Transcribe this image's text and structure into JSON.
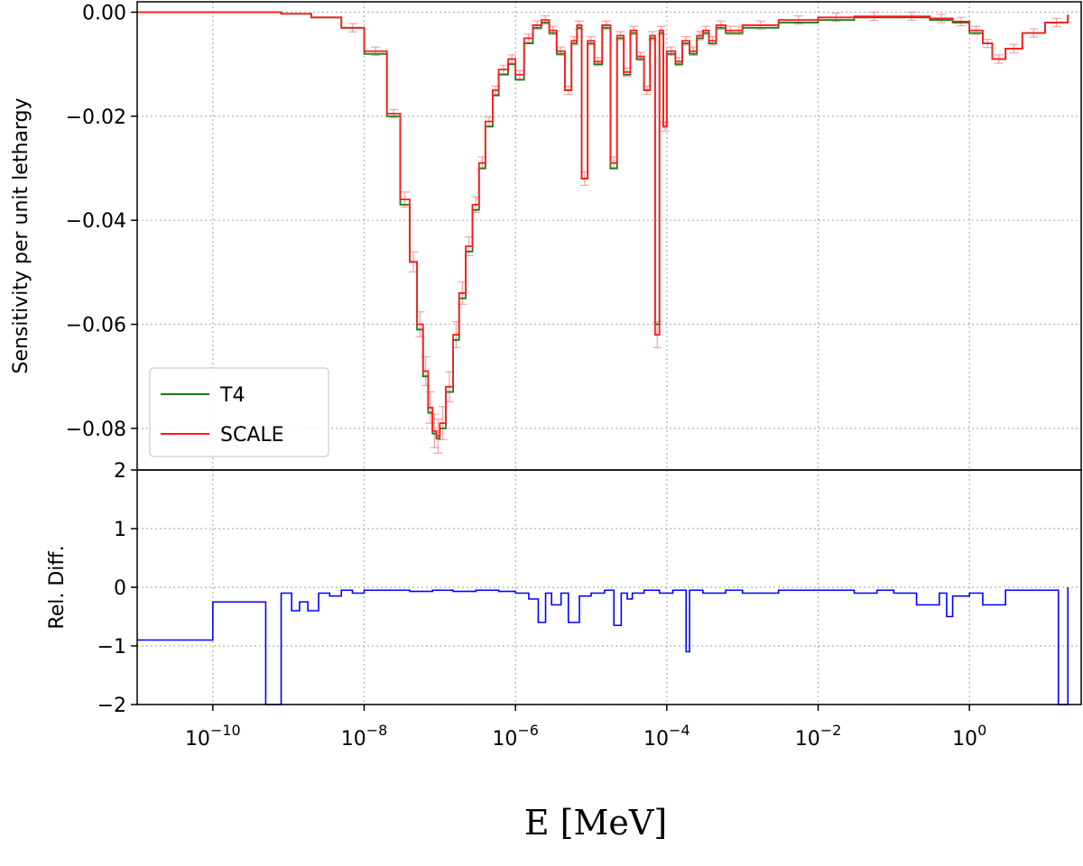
{
  "chart_data": [
    {
      "type": "line",
      "panel": "top",
      "ylabel": "Sensitivity per unit lethargy",
      "xscale": "log",
      "xlim": [
        1e-11,
        30
      ],
      "ylim": [
        -0.088,
        0.002
      ],
      "yticks": [
        0.0,
        -0.02,
        -0.04,
        -0.06,
        -0.08
      ],
      "ytick_labels": [
        "0.00",
        "−0.02",
        "−0.04",
        "−0.06",
        "−0.08"
      ],
      "grid": true,
      "legend": {
        "placement": "lower-left",
        "entries": [
          "T4",
          "SCALE"
        ]
      },
      "series": [
        {
          "name": "T4",
          "color": "#1a7a1a",
          "x": [
            1e-11,
            1e-10,
            3e-10,
            8e-10,
            2e-09,
            5e-09,
            1e-08,
            2e-08,
            3e-08,
            4e-08,
            5e-08,
            6e-08,
            7e-08,
            8e-08,
            9e-08,
            1e-07,
            1.2e-07,
            1.5e-07,
            1.8e-07,
            2.2e-07,
            2.7e-07,
            3.3e-07,
            4e-07,
            5e-07,
            6e-07,
            8e-07,
            1e-06,
            1.3e-06,
            1.7e-06,
            2.2e-06,
            2.8e-06,
            3.5e-06,
            4.5e-06,
            5.5e-06,
            6.5e-06,
            7.5e-06,
            9e-06,
            1.1e-05,
            1.4e-05,
            1.8e-05,
            2.2e-05,
            2.7e-05,
            3.3e-05,
            4e-05,
            5e-05,
            6e-05,
            7e-05,
            8e-05,
            9e-05,
            0.0001,
            0.00013,
            0.00016,
            0.0002,
            0.00025,
            0.0003,
            0.00036,
            0.00045,
            0.0006,
            0.0008,
            0.001,
            0.003,
            0.01,
            0.03,
            0.1,
            0.3,
            0.6,
            1,
            1.5,
            2,
            3,
            5,
            10,
            20
          ],
          "y": [
            0.0,
            0.0,
            0.0,
            -0.0003,
            -0.001,
            -0.003,
            -0.008,
            -0.02,
            -0.037,
            -0.048,
            -0.061,
            -0.07,
            -0.077,
            -0.081,
            -0.082,
            -0.08,
            -0.073,
            -0.063,
            -0.055,
            -0.046,
            -0.038,
            -0.03,
            -0.022,
            -0.016,
            -0.012,
            -0.01,
            -0.013,
            -0.006,
            -0.003,
            -0.002,
            -0.004,
            -0.008,
            -0.015,
            -0.006,
            -0.003,
            -0.032,
            -0.006,
            -0.01,
            -0.003,
            -0.03,
            -0.005,
            -0.012,
            -0.004,
            -0.009,
            -0.015,
            -0.005,
            -0.06,
            -0.004,
            -0.022,
            -0.008,
            -0.01,
            -0.006,
            -0.008,
            -0.005,
            -0.004,
            -0.006,
            -0.003,
            -0.004,
            -0.004,
            -0.003,
            -0.002,
            -0.0015,
            -0.001,
            -0.001,
            -0.0015,
            -0.002,
            -0.004,
            -0.006,
            -0.009,
            -0.007,
            -0.004,
            -0.002,
            -0.0005
          ]
        },
        {
          "name": "SCALE",
          "color": "#ff1a1a",
          "x": [
            1e-11,
            1e-10,
            3e-10,
            8e-10,
            2e-09,
            5e-09,
            1e-08,
            2e-08,
            3e-08,
            4e-08,
            5e-08,
            6e-08,
            7e-08,
            8e-08,
            9e-08,
            1e-07,
            1.2e-07,
            1.5e-07,
            1.8e-07,
            2.2e-07,
            2.7e-07,
            3.3e-07,
            4e-07,
            5e-07,
            6e-07,
            8e-07,
            1e-06,
            1.3e-06,
            1.7e-06,
            2.2e-06,
            2.8e-06,
            3.5e-06,
            4.5e-06,
            5.5e-06,
            6.5e-06,
            7.5e-06,
            9e-06,
            1.1e-05,
            1.4e-05,
            1.8e-05,
            2.2e-05,
            2.7e-05,
            3.3e-05,
            4e-05,
            5e-05,
            6e-05,
            7e-05,
            8e-05,
            9e-05,
            0.0001,
            0.00013,
            0.00016,
            0.0002,
            0.00025,
            0.0003,
            0.00036,
            0.00045,
            0.0006,
            0.0008,
            0.001,
            0.003,
            0.01,
            0.03,
            0.1,
            0.3,
            0.6,
            1,
            1.5,
            2,
            3,
            5,
            10,
            20
          ],
          "y": [
            0.0,
            0.0,
            0.0,
            -0.0003,
            -0.001,
            -0.003,
            -0.0075,
            -0.0195,
            -0.036,
            -0.048,
            -0.06,
            -0.069,
            -0.076,
            -0.0805,
            -0.0815,
            -0.079,
            -0.072,
            -0.062,
            -0.054,
            -0.045,
            -0.037,
            -0.029,
            -0.021,
            -0.015,
            -0.011,
            -0.009,
            -0.012,
            -0.005,
            -0.0025,
            -0.0015,
            -0.0035,
            -0.0075,
            -0.015,
            -0.0055,
            -0.0025,
            -0.032,
            -0.0055,
            -0.0095,
            -0.0025,
            -0.029,
            -0.0045,
            -0.0115,
            -0.0035,
            -0.0085,
            -0.015,
            -0.0045,
            -0.062,
            -0.0035,
            -0.022,
            -0.0075,
            -0.0095,
            -0.0055,
            -0.0075,
            -0.0045,
            -0.0035,
            -0.0055,
            -0.0025,
            -0.0035,
            -0.0035,
            -0.0025,
            -0.0015,
            -0.001,
            -0.0008,
            -0.0008,
            -0.0012,
            -0.0018,
            -0.0035,
            -0.006,
            -0.009,
            -0.007,
            -0.004,
            -0.002,
            -0.0005
          ]
        }
      ]
    },
    {
      "type": "line",
      "panel": "bottom",
      "ylabel": "Rel. Diff.",
      "xlabel": "E [MeV]",
      "xscale": "log",
      "xlim": [
        1e-11,
        30
      ],
      "ylim": [
        -2,
        2
      ],
      "yticks": [
        2,
        1,
        0,
        -1,
        -2
      ],
      "ytick_labels": [
        "2",
        "1",
        "0",
        "−1",
        "−2"
      ],
      "xticks": [
        1e-10,
        1e-08,
        1e-06,
        0.0001,
        0.01,
        1
      ],
      "xtick_labels": [
        {
          "base": "10",
          "exp": "−10"
        },
        {
          "base": "10",
          "exp": "−8"
        },
        {
          "base": "10",
          "exp": "−6"
        },
        {
          "base": "10",
          "exp": "−4"
        },
        {
          "base": "10",
          "exp": "−2"
        },
        {
          "base": "10",
          "exp": "0"
        }
      ],
      "grid": true,
      "series": [
        {
          "name": "",
          "color": "#0000ff",
          "x": [
            1e-11,
            1e-10,
            5e-10,
            6e-10,
            8e-10,
            1.1e-09,
            1.4e-09,
            1.8e-09,
            2.5e-09,
            3.5e-09,
            5e-09,
            7e-09,
            1e-08,
            2e-08,
            4e-08,
            8e-08,
            1.5e-07,
            3e-07,
            6e-07,
            1e-06,
            1.5e-06,
            2e-06,
            2.5e-06,
            3e-06,
            4e-06,
            5e-06,
            7e-06,
            1e-05,
            1.5e-05,
            2e-05,
            2.5e-05,
            3e-05,
            3.5e-05,
            5e-05,
            8e-05,
            0.00012,
            0.00018,
            0.0002,
            0.0003,
            0.0006,
            0.001,
            0.003,
            0.01,
            0.03,
            0.06,
            0.1,
            0.2,
            0.4,
            0.5,
            0.6,
            1,
            1.5,
            3,
            8,
            13,
            15,
            20
          ],
          "y": [
            -0.9,
            -0.25,
            -2.0,
            -2.0,
            -0.1,
            -0.4,
            -0.25,
            -0.4,
            -0.1,
            -0.15,
            -0.05,
            -0.1,
            -0.05,
            -0.05,
            -0.07,
            -0.05,
            -0.07,
            -0.05,
            -0.07,
            -0.1,
            -0.2,
            -0.6,
            -0.1,
            -0.3,
            -0.1,
            -0.6,
            -0.15,
            -0.1,
            -0.05,
            -0.65,
            -0.1,
            -0.2,
            -0.1,
            -0.05,
            -0.1,
            -0.05,
            -1.1,
            -0.05,
            -0.1,
            -0.05,
            -0.1,
            -0.05,
            -0.05,
            -0.1,
            -0.05,
            -0.1,
            -0.3,
            -0.1,
            -0.5,
            -0.15,
            -0.1,
            -0.3,
            -0.05,
            -0.05,
            -0.05,
            -2.0,
            0.0
          ]
        }
      ]
    }
  ]
}
